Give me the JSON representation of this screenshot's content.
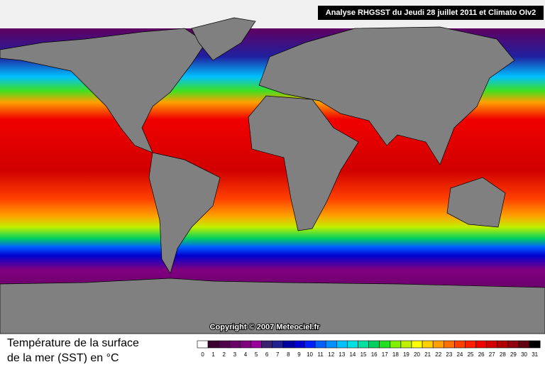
{
  "header": {
    "title": "Analyse RHGSST  du Jeudi 28 juillet 2011 et Climato OIv2"
  },
  "map": {
    "copyright": "Copyright © 2007 Meteociel.fr"
  },
  "footer": {
    "title": [
      "Température de la surface",
      "de la mer (SST) en °C"
    ]
  },
  "legend": {
    "items": [
      {
        "label": "0",
        "color": "#ffffff"
      },
      {
        "label": "1",
        "color": "#3a0030"
      },
      {
        "label": "2",
        "color": "#50004a"
      },
      {
        "label": "3",
        "color": "#680068"
      },
      {
        "label": "4",
        "color": "#800080"
      },
      {
        "label": "5",
        "color": "#9a009a"
      },
      {
        "label": "6",
        "color": "#3a2070"
      },
      {
        "label": "7",
        "color": "#202090"
      },
      {
        "label": "8",
        "color": "#0000a0"
      },
      {
        "label": "9",
        "color": "#0000d0"
      },
      {
        "label": "10",
        "color": "#0020ff"
      },
      {
        "label": "11",
        "color": "#0060ff"
      },
      {
        "label": "12",
        "color": "#0090ff"
      },
      {
        "label": "13",
        "color": "#00c0ff"
      },
      {
        "label": "14",
        "color": "#00e0e0"
      },
      {
        "label": "15",
        "color": "#00e0a0"
      },
      {
        "label": "16",
        "color": "#00d060"
      },
      {
        "label": "17",
        "color": "#20e020"
      },
      {
        "label": "18",
        "color": "#80f000"
      },
      {
        "label": "19",
        "color": "#c0f000"
      },
      {
        "label": "20",
        "color": "#ffff00"
      },
      {
        "label": "21",
        "color": "#ffd000"
      },
      {
        "label": "22",
        "color": "#ffa000"
      },
      {
        "label": "23",
        "color": "#ff7000"
      },
      {
        "label": "24",
        "color": "#ff4000"
      },
      {
        "label": "25",
        "color": "#ff2000"
      },
      {
        "label": "26",
        "color": "#f00000"
      },
      {
        "label": "27",
        "color": "#d00000"
      },
      {
        "label": "28",
        "color": "#b00000"
      },
      {
        "label": "29",
        "color": "#900010"
      },
      {
        "label": "30",
        "color": "#600010"
      },
      {
        "label": "31",
        "color": "#000000"
      }
    ]
  }
}
